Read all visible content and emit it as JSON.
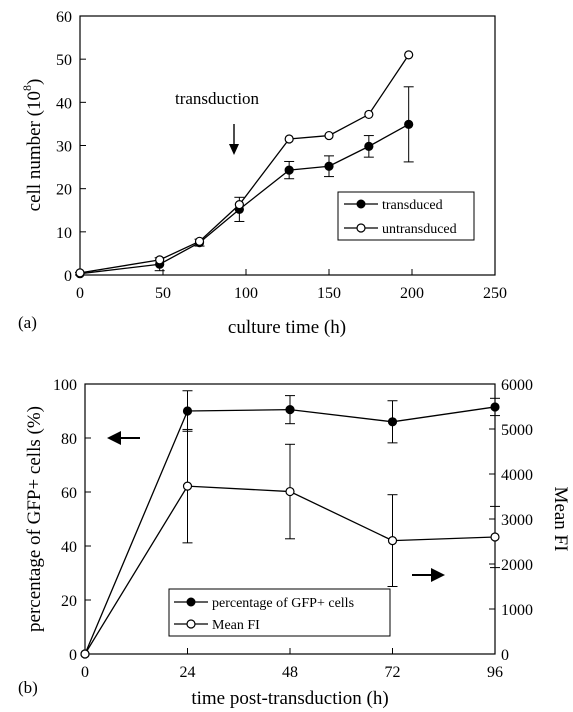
{
  "chart_data": [
    {
      "type": "line",
      "panel_label": "(a)",
      "xlabel": "culture time (h)",
      "ylabel": "cell number (10",
      "ylabel_exponent": "8",
      "ylabel_close": ")",
      "xlim": [
        0,
        250
      ],
      "ylim": [
        0,
        60
      ],
      "xticks": [
        0,
        50,
        100,
        150,
        200,
        250
      ],
      "yticks": [
        0,
        10,
        20,
        30,
        40,
        50,
        60
      ],
      "grid": false,
      "legend_position": "lower-right",
      "annotation": {
        "text": "transduction",
        "arrow_at_x": 93
      },
      "series": [
        {
          "name": "transduced",
          "marker": "filled-circle",
          "x": [
            0,
            48,
            72,
            96,
            126,
            150,
            174,
            198
          ],
          "y": [
            0.3,
            2.5,
            7.5,
            15.2,
            24.3,
            25.2,
            29.8,
            34.9
          ],
          "err": [
            0.3,
            1.5,
            0.8,
            2.8,
            2.0,
            2.4,
            2.5,
            8.7
          ]
        },
        {
          "name": "untransduced",
          "marker": "open-circle",
          "x": [
            0,
            48,
            72,
            96,
            126,
            150,
            174,
            198
          ],
          "y": [
            0.5,
            3.5,
            7.8,
            16.3,
            31.5,
            32.3,
            37.2,
            51.0
          ],
          "err": [
            0,
            0,
            0,
            0,
            0,
            0,
            0,
            0
          ]
        }
      ]
    },
    {
      "type": "line",
      "panel_label": "(b)",
      "xlabel": "time post-transduction (h)",
      "ylabel": "percentage of GFP+ cells (%)",
      "y2label": "Mean FI",
      "xlim": [
        0,
        96
      ],
      "ylim": [
        0,
        100
      ],
      "y2lim": [
        0,
        6000
      ],
      "xticks": [
        0,
        24,
        48,
        72,
        96
      ],
      "yticks": [
        0,
        20,
        40,
        60,
        80,
        100
      ],
      "y2ticks": [
        0,
        1000,
        2000,
        3000,
        4000,
        5000,
        6000
      ],
      "grid": false,
      "legend_position": "bottom-center",
      "series": [
        {
          "name": "percentage of GFP+ cells",
          "marker": "filled-circle",
          "axis": "left",
          "x": [
            0,
            24,
            48,
            72,
            96
          ],
          "y": [
            0,
            90,
            90.5,
            86,
            91.5
          ],
          "err": [
            0,
            7.5,
            5.2,
            7.8,
            3.2
          ]
        },
        {
          "name": "Mean FI",
          "marker": "open-circle",
          "axis": "right",
          "x": [
            0,
            24,
            48,
            72,
            96
          ],
          "y": [
            0,
            3730,
            3610,
            2520,
            2600
          ],
          "err": [
            0,
            1260,
            1050,
            1020,
            680
          ]
        }
      ]
    }
  ]
}
